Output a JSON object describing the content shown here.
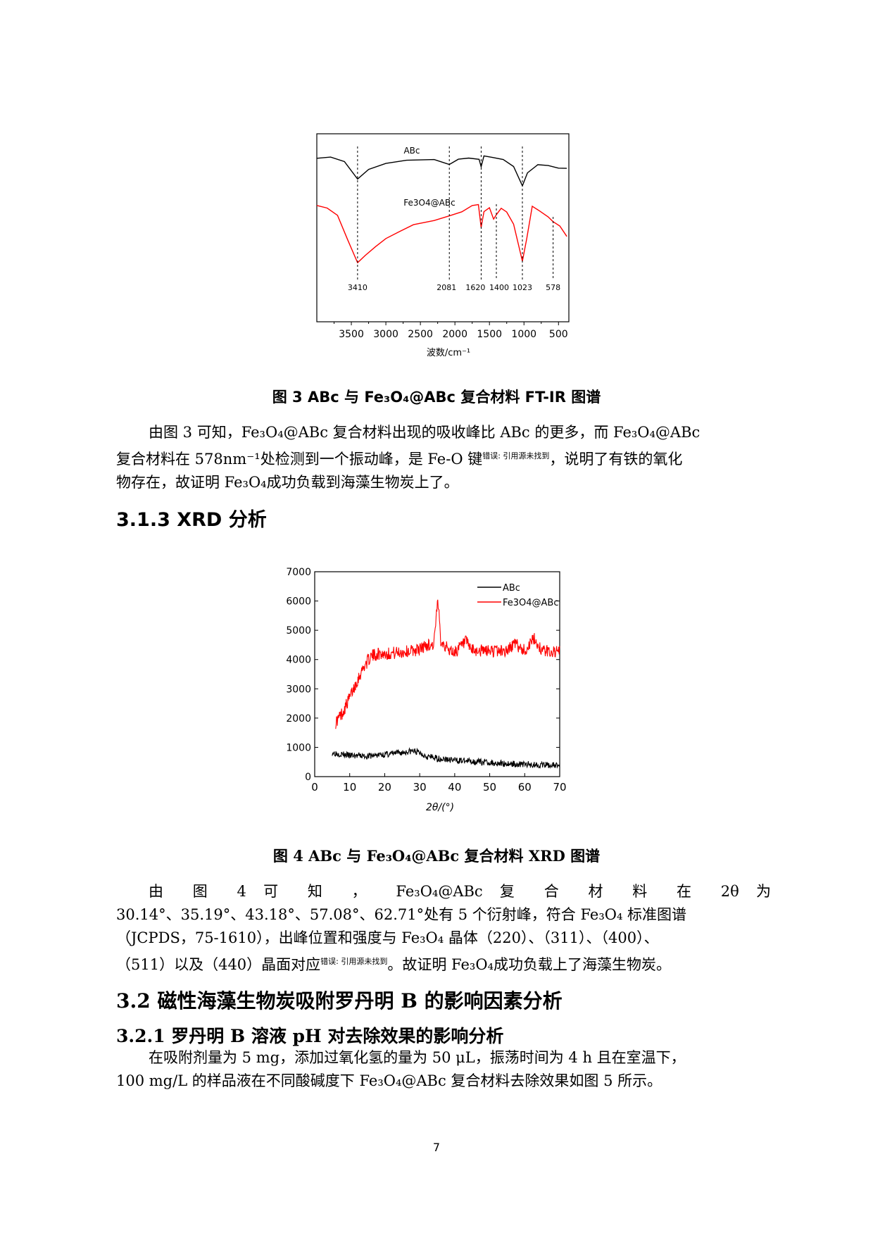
{
  "figure3": {
    "chart_data": {
      "type": "line",
      "xlabel": "波数/cm⁻¹",
      "xlim": [
        4000,
        350
      ],
      "x_ticks": [
        "3500",
        "3000",
        "2500",
        "2000",
        "1500",
        "1000",
        "500"
      ],
      "series": [
        {
          "name": "ABc",
          "color": "#000000"
        },
        {
          "name": "Fe3O4@ABc",
          "color": "#ff0000"
        }
      ],
      "peak_labels": [
        "3410",
        "2081",
        "1620",
        "1400",
        "1023",
        "578"
      ]
    },
    "caption": "图 3 ABc 与 Fe₃O₄@ABc 复合材料 FT-IR 图谱"
  },
  "paragraph1": {
    "line1": "由图 3 可知，Fe₃O₄@ABc 复合材料出现的吸收峰比 ABc 的更多，而 Fe₃O₄@ABc",
    "line2_a": "复合材料在 578nm⁻¹处检测到一个振动峰，是 Fe-O 键",
    "line2_ref": "错误: 引用源未找到",
    "line2_b": "，说明了有铁的氧化",
    "line3": "物存在，故证明 Fe₃O₄成功负载到海藻生物炭上了。"
  },
  "heading_313": "3.1.3 XRD 分析",
  "figure4": {
    "chart_data": {
      "type": "line",
      "xlabel": "2θ/(°)",
      "xlim": [
        0,
        70
      ],
      "ylim": [
        0,
        7000
      ],
      "x_ticks": [
        "0",
        "10",
        "20",
        "30",
        "40",
        "50",
        "60",
        "70"
      ],
      "y_ticks": [
        "0",
        "1000",
        "2000",
        "3000",
        "4000",
        "5000",
        "6000",
        "7000"
      ],
      "series": [
        {
          "name": "ABc",
          "color": "#000000",
          "x": [
            5,
            10,
            15,
            20,
            25,
            28,
            30,
            32,
            35,
            40,
            45,
            50,
            55,
            60,
            65,
            70
          ],
          "y": [
            820,
            720,
            700,
            760,
            820,
            880,
            820,
            700,
            620,
            560,
            520,
            480,
            440,
            420,
            400,
            380
          ]
        },
        {
          "name": "Fe3O4@ABc",
          "color": "#ff0000",
          "x": [
            6,
            8,
            10,
            12,
            14,
            16,
            18,
            20,
            25,
            30,
            32,
            34,
            35.2,
            36,
            38,
            40,
            43.2,
            45,
            50,
            55,
            57.1,
            60,
            62.7,
            65,
            70
          ],
          "y": [
            1850,
            2200,
            2700,
            3250,
            3750,
            4100,
            4200,
            4200,
            4250,
            4350,
            4500,
            4500,
            6000,
            4700,
            4350,
            4250,
            4600,
            4300,
            4300,
            4300,
            4550,
            4300,
            4700,
            4300,
            4250
          ]
        }
      ]
    },
    "caption": "图 4 ABc 与 Fe₃O₄@ABc 复合材料 XRD 图谱"
  },
  "paragraph2": {
    "line1": "由 图 4 可 知 ， Fe₃O₄@ABc 复 合 材 料 在 2θ 为",
    "line2": "30.14°、35.19°、43.18°、57.08°、62.71°处有 5 个衍射峰，符合 Fe₃O₄ 标准图谱",
    "line3": "（JCPDS，75-1610），出峰位置和强度与 Fe₃O₄ 晶体（220）、（311）、（400）、",
    "line4_a": "（511）以及（440）晶面对应",
    "line4_ref": "错误: 引用源未找到",
    "line4_b": "。故证明 Fe₃O₄成功负载上了海藻生物炭。"
  },
  "heading_32": "3.2 磁性海藻生物炭吸附罗丹明 B 的影响因素分析",
  "heading_321": "3.2.1 罗丹明 B 溶液 pH 对去除效果的影响分析",
  "paragraph3": {
    "line1": "在吸附剂量为 5 mg，添加过氧化氢的量为 50 μL，振荡时间为 4 h 且在室温下，",
    "line2": "100 mg/L 的样品液在不同酸碱度下 Fe₃O₄@ABc 复合材料去除效果如图 5 所示。"
  },
  "page_number": "7"
}
